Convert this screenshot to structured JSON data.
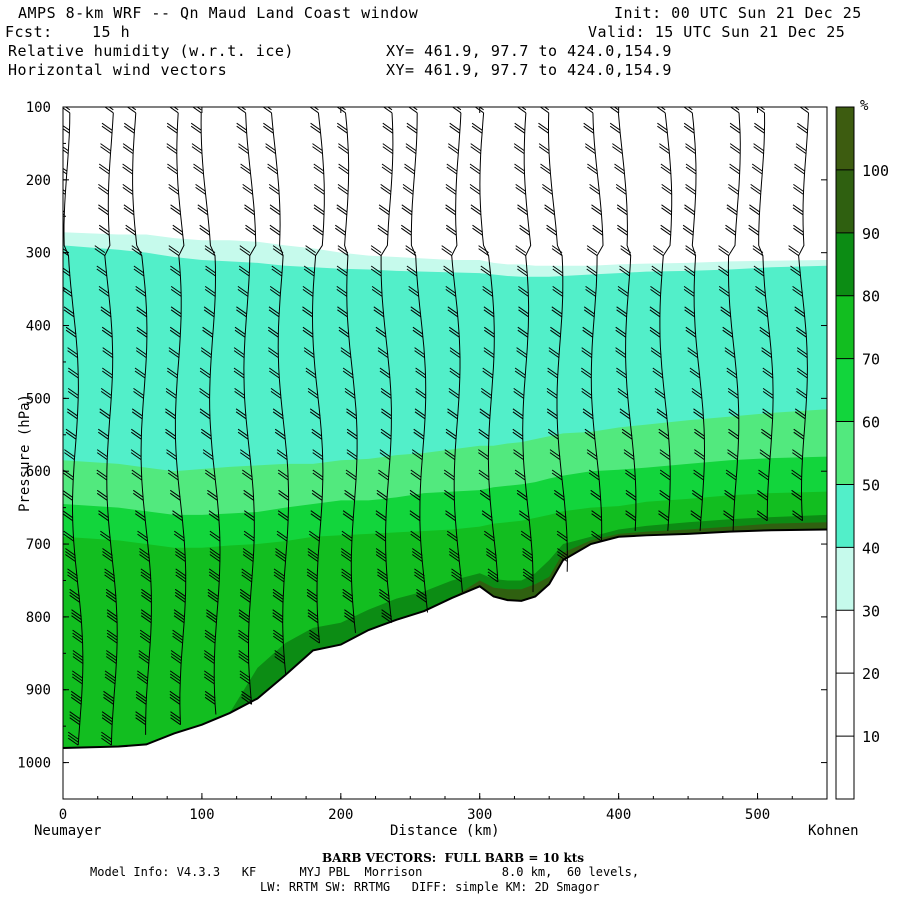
{
  "header": {
    "title": "AMPS 8-km WRF -- Qn Maud Land Coast window",
    "init": "Init: 00 UTC Sun 21 Dec 25",
    "fcst_label": "Fcst:",
    "fcst_value": "15 h",
    "valid": "Valid: 15 UTC Sun 21 Dec 25",
    "field1": "Relative humidity (w.r.t. ice)",
    "field1_xy": "XY= 461.9, 97.7 to 424.0,154.9",
    "field2": "Horizontal wind vectors",
    "field2_xy": "XY= 461.9, 97.7 to 424.0,154.9"
  },
  "chart_data": {
    "type": "cross-section",
    "title": "Relative humidity (w.r.t. ice)",
    "xlabel": "Distance (km)",
    "ylabel": "Pressure (hPa)",
    "xlim": [
      0,
      550
    ],
    "ylim": [
      100,
      1050
    ],
    "y_log": false,
    "x_ticks": [
      0,
      100,
      200,
      300,
      400,
      500
    ],
    "y_ticks": [
      100,
      200,
      300,
      400,
      500,
      600,
      700,
      800,
      900,
      1000
    ],
    "x_endpoints": {
      "left": "Neumayer",
      "right": "Kohnen"
    },
    "colorbar": {
      "unit": "%",
      "levels": [
        10,
        20,
        30,
        40,
        50,
        60,
        70,
        80,
        90,
        100
      ],
      "colors": [
        "#ffffff",
        "#ffffff",
        "#ffffff",
        "#c6faec",
        "#52efc9",
        "#52e97e",
        "#12d53c",
        "#12be20",
        "#0c8c14",
        "#2f6010",
        "#3d5c10"
      ]
    },
    "terrain_pressure": {
      "x": [
        0,
        40,
        60,
        80,
        100,
        120,
        140,
        160,
        180,
        200,
        220,
        240,
        260,
        280,
        300,
        310,
        320,
        330,
        340,
        350,
        360,
        380,
        400,
        420,
        450,
        480,
        510,
        550
      ],
      "p": [
        980,
        978,
        975,
        960,
        948,
        932,
        912,
        880,
        846,
        838,
        818,
        804,
        792,
        774,
        758,
        772,
        777,
        778,
        772,
        755,
        722,
        700,
        690,
        688,
        686,
        683,
        681,
        680
      ]
    },
    "rh_layers": [
      {
        "rh": 35,
        "top": [
          272,
          275,
          275,
          280,
          283,
          283,
          285,
          290,
          294,
          300,
          304,
          306,
          308,
          310,
          310,
          314,
          316,
          316,
          318,
          318,
          318,
          318,
          316,
          315,
          314,
          312,
          311,
          310
        ]
      },
      {
        "rh": 45,
        "top": [
          290,
          296,
          300,
          306,
          310,
          312,
          314,
          318,
          320,
          322,
          323,
          325,
          326,
          327,
          328,
          330,
          332,
          333,
          333,
          333,
          332,
          330,
          328,
          326,
          325,
          323,
          320,
          318
        ]
      },
      {
        "rh": 55,
        "top": [
          585,
          590,
          595,
          600,
          597,
          594,
          592,
          590,
          590,
          585,
          583,
          578,
          575,
          570,
          565,
          565,
          562,
          560,
          556,
          552,
          548,
          546,
          540,
          536,
          530,
          525,
          520,
          515
        ]
      },
      {
        "rh": 65,
        "top": [
          645,
          650,
          655,
          660,
          660,
          658,
          656,
          650,
          645,
          640,
          640,
          636,
          630,
          628,
          626,
          622,
          620,
          618,
          615,
          610,
          606,
          600,
          598,
          595,
          590,
          585,
          582,
          580
        ]
      },
      {
        "rh": 75,
        "top": [
          690,
          695,
          700,
          705,
          705,
          702,
          700,
          696,
          690,
          688,
          686,
          684,
          682,
          680,
          676,
          672,
          670,
          668,
          664,
          660,
          655,
          650,
          648,
          642,
          638,
          633,
          630,
          628
        ]
      },
      {
        "rh": 85,
        "top": [
          980,
          978,
          975,
          960,
          948,
          932,
          870,
          836,
          815,
          808,
          790,
          775,
          765,
          750,
          740,
          748,
          750,
          750,
          740,
          722,
          700,
          690,
          680,
          675,
          670,
          666,
          663,
          660
        ]
      },
      {
        "rh": 95,
        "top": [
          980,
          978,
          975,
          960,
          948,
          932,
          912,
          880,
          846,
          838,
          818,
          804,
          792,
          774,
          750,
          760,
          762,
          762,
          755,
          745,
          712,
          695,
          686,
          683,
          680,
          676,
          672,
          670
        ]
      }
    ],
    "barbs": {
      "columns_km": [
        5,
        30,
        55,
        80,
        105,
        130,
        155,
        180,
        205,
        230,
        255,
        280,
        305,
        330,
        355,
        380,
        405,
        430,
        455,
        480,
        505,
        530
      ]
    }
  },
  "footer": {
    "barb_note": "BARB VECTORS:  FULL BARB = 10 kts",
    "model_info": "Model Info: V4.3.3   KF      MYJ PBL  Morrison           8.0 km,  60 levels,",
    "model_info2": "LW: RRTM SW: RRTMG   DIFF: simple KM: 2D Smagor"
  }
}
